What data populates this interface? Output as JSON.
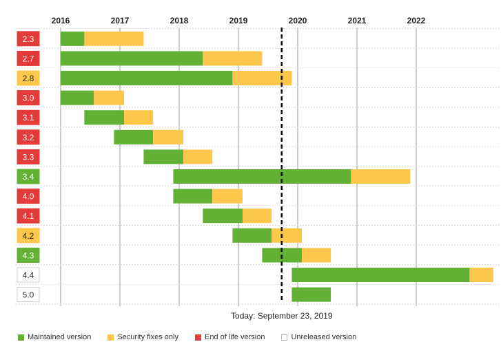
{
  "chart_data": {
    "type": "gantt",
    "x_ticks": [
      "2016",
      "2017",
      "2018",
      "2019",
      "2020",
      "2021",
      "2022"
    ],
    "today_label": "Today: September 23, 2019",
    "today": 2019.73,
    "x_range": [
      2015.62,
      2022.9
    ],
    "colors": {
      "maintained": "#62b034",
      "security": "#fcc74b",
      "eol": "#e33a3a",
      "unreleased": "#ffffff",
      "grid": "#999999",
      "row_line": "#d8d8d8"
    },
    "rows": [
      {
        "version": "2.3",
        "status": "eol",
        "start": 2016.0,
        "security_start": 2016.4,
        "end": 2017.4
      },
      {
        "version": "2.7",
        "status": "eol",
        "start": 2016.0,
        "security_start": 2018.4,
        "end": 2019.4
      },
      {
        "version": "2.8",
        "status": "security",
        "start": 2016.0,
        "security_start": 2018.9,
        "end": 2019.9
      },
      {
        "version": "3.0",
        "status": "eol",
        "start": 2016.0,
        "security_start": 2016.56,
        "end": 2017.07
      },
      {
        "version": "3.1",
        "status": "eol",
        "start": 2016.4,
        "security_start": 2017.07,
        "end": 2017.56
      },
      {
        "version": "3.2",
        "status": "eol",
        "start": 2016.9,
        "security_start": 2017.56,
        "end": 2018.07
      },
      {
        "version": "3.3",
        "status": "eol",
        "start": 2017.4,
        "security_start": 2018.07,
        "end": 2018.56
      },
      {
        "version": "3.4",
        "status": "maintained",
        "start": 2017.9,
        "security_start": 2020.9,
        "end": 2021.9
      },
      {
        "version": "4.0",
        "status": "eol",
        "start": 2017.9,
        "security_start": 2018.56,
        "end": 2019.07
      },
      {
        "version": "4.1",
        "status": "eol",
        "start": 2018.4,
        "security_start": 2019.07,
        "end": 2019.56
      },
      {
        "version": "4.2",
        "status": "security",
        "start": 2018.9,
        "security_start": 2019.56,
        "end": 2020.07
      },
      {
        "version": "4.3",
        "status": "maintained",
        "start": 2019.4,
        "security_start": 2020.07,
        "end": 2020.56
      },
      {
        "version": "4.4",
        "status": "unreleased",
        "start": 2019.9,
        "security_start": 2022.9,
        "end": 2023.3
      },
      {
        "version": "5.0",
        "status": "unreleased",
        "start": 2019.9,
        "security_start": 2020.56,
        "end": 2020.56
      }
    ]
  },
  "legend": [
    {
      "label": "Maintained version",
      "color": "#62b034",
      "kind": "maintained"
    },
    {
      "label": "Security fixes only",
      "color": "#fcc74b",
      "kind": "security"
    },
    {
      "label": "End of life version",
      "color": "#e33a3a",
      "kind": "eol"
    },
    {
      "label": "Unreleased version",
      "color": "#ffffff",
      "kind": "unreleased"
    }
  ]
}
